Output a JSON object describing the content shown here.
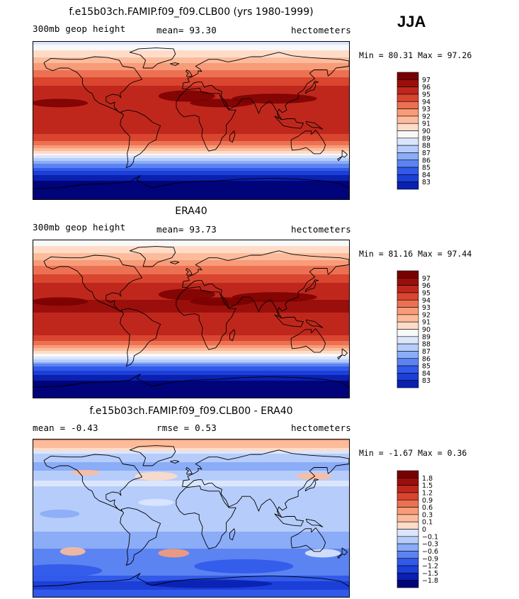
{
  "season": "JJA",
  "colors": {
    "diverging": [
      "#00037a",
      "#0a20b0",
      "#1c3fd8",
      "#3159ea",
      "#5b83f2",
      "#8bacf7",
      "#b6cdfb",
      "#dbe6fd",
      "#f8f8f8",
      "#ffdcc8",
      "#fcbc9c",
      "#f89b78",
      "#ec7152",
      "#d9452f",
      "#c0271c",
      "#9a0f0c",
      "#780000"
    ],
    "continent_outline": "#000000"
  },
  "chart_data": [
    {
      "type": "heatmap",
      "panel": "model",
      "title": "f.e15b03ch.FAMIP.f09_f09.CLB00 (yrs 1980-1999)",
      "left_label": "300mb geop height",
      "mean_label": "mean=  93.30",
      "units": "hectometers",
      "min_max": "Min =  80.31 Max =  97.26",
      "min": 80.31,
      "max": 97.26,
      "colorbar_ticks": [
        "97",
        "96",
        "95",
        "94",
        "93",
        "92",
        "91",
        "90",
        "89",
        "88",
        "87",
        "86",
        "85",
        "84",
        "83"
      ],
      "zonal_profile_north_to_south": [
        {
          "lat": 90,
          "value": 89.6
        },
        {
          "lat": 80,
          "value": 91.0
        },
        {
          "lat": 70,
          "value": 92.4
        },
        {
          "lat": 60,
          "value": 93.8
        },
        {
          "lat": 50,
          "value": 95.0
        },
        {
          "lat": 40,
          "value": 96.0
        },
        {
          "lat": 30,
          "value": 96.8
        },
        {
          "lat": 15,
          "value": 96.9
        },
        {
          "lat": 0,
          "value": 96.6
        },
        {
          "lat": -15,
          "value": 96.1
        },
        {
          "lat": -25,
          "value": 94.8
        },
        {
          "lat": -35,
          "value": 91.8
        },
        {
          "lat": -45,
          "value": 88.5
        },
        {
          "lat": -55,
          "value": 85.6
        },
        {
          "lat": -65,
          "value": 83.5
        },
        {
          "lat": -75,
          "value": 82.0
        },
        {
          "lat": -90,
          "value": 80.8
        }
      ]
    },
    {
      "type": "heatmap",
      "panel": "observed",
      "title": "ERA40",
      "left_label": "300mb geop height",
      "mean_label": "mean=  93.73",
      "units": "hectometers",
      "min_max": "Min =  81.16 Max =  97.44",
      "min": 81.16,
      "max": 97.44,
      "colorbar_ticks": [
        "97",
        "96",
        "95",
        "94",
        "93",
        "92",
        "91",
        "90",
        "89",
        "88",
        "87",
        "86",
        "85",
        "84",
        "83"
      ],
      "zonal_profile_north_to_south": [
        {
          "lat": 90,
          "value": 90.2
        },
        {
          "lat": 80,
          "value": 91.5
        },
        {
          "lat": 70,
          "value": 92.7
        },
        {
          "lat": 60,
          "value": 94.0
        },
        {
          "lat": 50,
          "value": 95.2
        },
        {
          "lat": 40,
          "value": 96.1
        },
        {
          "lat": 30,
          "value": 96.9
        },
        {
          "lat": 15,
          "value": 97.1
        },
        {
          "lat": 0,
          "value": 96.9
        },
        {
          "lat": -15,
          "value": 96.4
        },
        {
          "lat": -25,
          "value": 95.2
        },
        {
          "lat": -35,
          "value": 92.5
        },
        {
          "lat": -45,
          "value": 89.2
        },
        {
          "lat": -55,
          "value": 86.0
        },
        {
          "lat": -65,
          "value": 83.8
        },
        {
          "lat": -75,
          "value": 82.4
        },
        {
          "lat": -90,
          "value": 81.4
        }
      ]
    },
    {
      "type": "heatmap",
      "panel": "difference",
      "title": "f.e15b03ch.FAMIP.f09_f09.CLB00 - ERA40",
      "left_label": "mean =  -0.43",
      "mean_label": "rmse =   0.53",
      "units": "hectometers",
      "min_max": "Min =  -1.67 Max =   0.36",
      "min": -1.67,
      "max": 0.36,
      "colorbar_ticks": [
        "1.8",
        "1.5",
        "1.2",
        "0.9",
        "0.6",
        "0.3",
        "0.1",
        "0",
        "-0.1",
        "-0.3",
        "-0.6",
        "-0.9",
        "-1.2",
        "-1.5",
        "-1.8"
      ],
      "zonal_profile_north_to_south": [
        {
          "lat": 90,
          "value": 0.35
        },
        {
          "lat": 80,
          "value": 0.1
        },
        {
          "lat": 70,
          "value": -0.2
        },
        {
          "lat": 60,
          "value": -0.35
        },
        {
          "lat": 50,
          "value": -0.25
        },
        {
          "lat": 40,
          "value": -0.05
        },
        {
          "lat": 30,
          "value": -0.2
        },
        {
          "lat": 15,
          "value": -0.25
        },
        {
          "lat": 0,
          "value": -0.3
        },
        {
          "lat": -15,
          "value": -0.3
        },
        {
          "lat": -25,
          "value": -0.35
        },
        {
          "lat": -35,
          "value": -0.6
        },
        {
          "lat": -45,
          "value": -0.85
        },
        {
          "lat": -55,
          "value": -0.75
        },
        {
          "lat": -65,
          "value": -0.9
        },
        {
          "lat": -75,
          "value": -1.3
        },
        {
          "lat": -90,
          "value": -1.1
        }
      ]
    }
  ]
}
